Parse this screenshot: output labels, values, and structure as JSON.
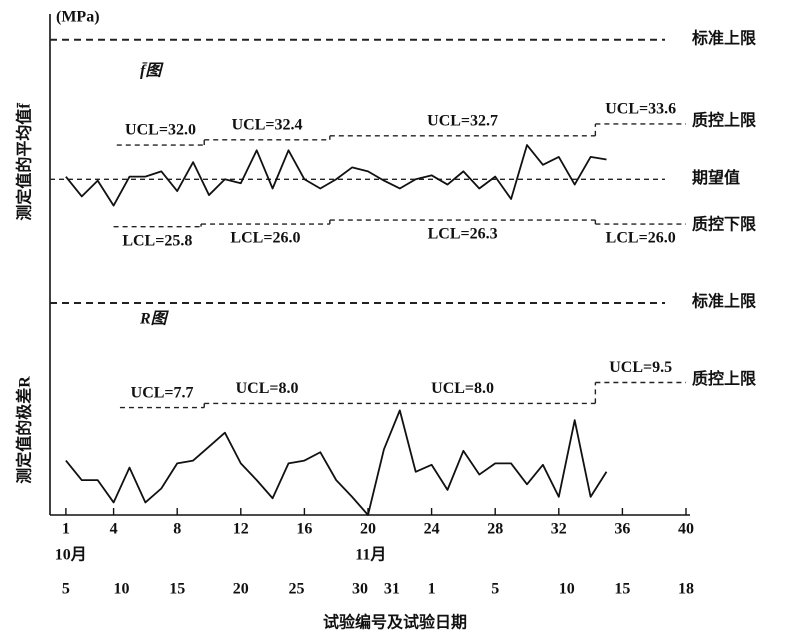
{
  "chart_data": [
    {
      "type": "line",
      "title": "f̄图",
      "ylabel": "测定值的平均值f̄",
      "unit": "(MPa)",
      "ylim": [
        20,
        41.5
      ],
      "x": [
        1,
        2,
        3,
        4,
        5,
        6,
        7,
        8,
        9,
        10,
        11,
        12,
        13,
        14,
        15,
        16,
        17,
        18,
        19,
        20,
        21,
        22,
        23,
        24,
        25,
        26,
        27,
        28,
        29,
        30,
        31,
        32,
        33,
        34,
        35
      ],
      "values": [
        29.6,
        28.1,
        29.3,
        27.4,
        29.6,
        29.6,
        30.0,
        28.5,
        30.7,
        28.2,
        29.4,
        29.1,
        31.6,
        28.7,
        31.6,
        29.4,
        28.7,
        29.4,
        30.3,
        30.0,
        29.3,
        28.7,
        29.4,
        29.7,
        29.0,
        30.0,
        28.7,
        29.6,
        27.9,
        32.0,
        30.5,
        31.1,
        29.0,
        31.1,
        30.9
      ],
      "reference_lines": [
        {
          "label": "标准上限",
          "value": 40
        },
        {
          "label": "期望值",
          "value": 29.4
        },
        {
          "label": "标准上限",
          "value": 20
        }
      ],
      "ucl": {
        "name": "质控上限",
        "breaks": [
          4.2,
          9.7,
          17.6,
          34.3,
          40
        ],
        "values": [
          32.0,
          32.4,
          32.7,
          33.6
        ],
        "value_labels": [
          "UCL=32.0",
          "UCL=32.4",
          "UCL=32.7",
          "UCL=33.6"
        ]
      },
      "lcl": {
        "name": "质控下限",
        "breaks": [
          4.0,
          9.5,
          17.6,
          34.3,
          40
        ],
        "values": [
          25.8,
          26.0,
          26.3,
          26.0
        ],
        "value_labels": [
          "LCL=25.8",
          "LCL=26.0",
          "LCL=26.3",
          "LCL=26.0"
        ]
      }
    },
    {
      "type": "line",
      "title": "R图",
      "ylabel": "测定值的极差R",
      "ylim": [
        0,
        15.2
      ],
      "x": [
        1,
        2,
        3,
        4,
        5,
        6,
        7,
        8,
        9,
        10,
        11,
        12,
        13,
        14,
        15,
        16,
        17,
        18,
        19,
        20,
        21,
        22,
        23,
        24,
        25,
        26,
        27,
        28,
        29,
        30,
        31,
        32,
        33,
        34,
        35
      ],
      "values": [
        3.9,
        2.5,
        2.5,
        0.9,
        3.4,
        0.9,
        1.9,
        3.7,
        3.9,
        4.9,
        5.9,
        3.7,
        2.5,
        1.2,
        3.7,
        3.9,
        4.5,
        2.5,
        1.3,
        0,
        4.7,
        7.5,
        3.1,
        3.6,
        1.8,
        4.6,
        2.9,
        3.7,
        3.7,
        2.2,
        3.6,
        1.3,
        6.8,
        1.3,
        3.1
      ],
      "ucl": {
        "name": "质控上限",
        "breaks": [
          4.4,
          9.7,
          17.6,
          34.3,
          40
        ],
        "values": [
          7.7,
          8.0,
          8.0,
          9.5
        ],
        "value_labels": [
          "UCL=7.7",
          "UCL=8.0",
          "UCL=8.0",
          "UCL=9.5"
        ]
      },
      "xlim": [
        0,
        40
      ],
      "xticks": [
        1,
        4,
        8,
        12,
        16,
        20,
        24,
        28,
        32,
        36,
        40
      ],
      "month_ticks": [
        {
          "value": 0.3,
          "label": "10月"
        },
        {
          "value": 19.2,
          "label": "11月"
        }
      ],
      "date_ticks": [
        {
          "value": 1,
          "label": "5"
        },
        {
          "value": 4.5,
          "label": "10"
        },
        {
          "value": 8,
          "label": "15"
        },
        {
          "value": 12,
          "label": "20"
        },
        {
          "value": 15.5,
          "label": "25"
        },
        {
          "value": 19.5,
          "label": "30"
        },
        {
          "value": 21.5,
          "label": "31"
        },
        {
          "value": 24,
          "label": "1"
        },
        {
          "value": 28,
          "label": "5"
        },
        {
          "value": 32.5,
          "label": "10"
        },
        {
          "value": 36,
          "label": "15"
        },
        {
          "value": 40,
          "label": "18"
        }
      ],
      "xlabel": "试验编号及试验日期"
    }
  ]
}
